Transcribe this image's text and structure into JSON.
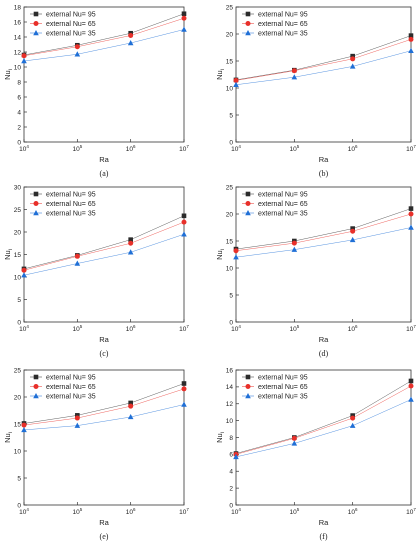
{
  "chart_data": [
    {
      "type": "line",
      "caption": "(a)",
      "xlabel": "Ra",
      "ylabel": "Nu",
      "ylabel_sub": "i",
      "xscale": "log",
      "x": [
        10000,
        100000,
        1000000,
        10000000
      ],
      "xticks": [
        {
          "base": "10",
          "exp": "4"
        },
        {
          "base": "10",
          "exp": "5"
        },
        {
          "base": "10",
          "exp": "6"
        },
        {
          "base": "10",
          "exp": "7"
        }
      ],
      "xlim": [
        10000,
        10000000
      ],
      "ylim": [
        0,
        18
      ],
      "yticks": [
        0,
        2,
        4,
        6,
        8,
        10,
        12,
        14,
        16,
        18
      ],
      "legend_position": "top-left",
      "series": [
        {
          "name": "external Nu= 95",
          "values": [
            11.6,
            12.9,
            14.5,
            17.1
          ]
        },
        {
          "name": "external Nu= 65",
          "values": [
            11.5,
            12.7,
            14.2,
            16.5
          ]
        },
        {
          "name": "external Nu= 35",
          "values": [
            10.8,
            11.7,
            13.2,
            15.0
          ]
        }
      ]
    },
    {
      "type": "line",
      "caption": "(b)",
      "xlabel": "Ra",
      "ylabel": "Nu",
      "ylabel_sub": "i",
      "xscale": "log",
      "x": [
        10000,
        100000,
        1000000,
        10000000
      ],
      "xticks": [
        {
          "base": "10",
          "exp": "4"
        },
        {
          "base": "10",
          "exp": "5"
        },
        {
          "base": "10",
          "exp": "6"
        },
        {
          "base": "10",
          "exp": "7"
        }
      ],
      "xlim": [
        10000,
        10000000
      ],
      "ylim": [
        0,
        25
      ],
      "yticks": [
        0,
        5,
        10,
        15,
        20,
        25
      ],
      "legend_position": "top-left",
      "series": [
        {
          "name": "external Nu= 95",
          "values": [
            11.5,
            13.3,
            15.9,
            19.7
          ]
        },
        {
          "name": "external Nu= 65",
          "values": [
            11.4,
            13.2,
            15.4,
            19.0
          ]
        },
        {
          "name": "external Nu= 35",
          "values": [
            10.6,
            12.0,
            14.0,
            16.9
          ]
        }
      ]
    },
    {
      "type": "line",
      "caption": "(c)",
      "xlabel": "Ra",
      "ylabel": "Nu",
      "ylabel_sub": "i",
      "xscale": "log",
      "x": [
        10000,
        100000,
        1000000,
        10000000
      ],
      "xticks": [
        {
          "base": "10",
          "exp": "4"
        },
        {
          "base": "10",
          "exp": "5"
        },
        {
          "base": "10",
          "exp": "6"
        },
        {
          "base": "10",
          "exp": "7"
        }
      ],
      "xlim": [
        10000,
        10000000
      ],
      "ylim": [
        0,
        30
      ],
      "yticks": [
        0,
        5,
        10,
        15,
        20,
        25,
        30
      ],
      "legend_position": "top-left",
      "series": [
        {
          "name": "external Nu= 95",
          "values": [
            11.8,
            14.8,
            18.3,
            23.6
          ]
        },
        {
          "name": "external Nu= 65",
          "values": [
            11.5,
            14.6,
            17.5,
            22.2
          ]
        },
        {
          "name": "external Nu= 35",
          "values": [
            10.4,
            13.0,
            15.5,
            19.5
          ]
        }
      ]
    },
    {
      "type": "line",
      "caption": "(d)",
      "xlabel": "Ra",
      "ylabel": "Nu",
      "ylabel_sub": "i",
      "xscale": "log",
      "x": [
        10000,
        100000,
        1000000,
        10000000
      ],
      "xticks": [
        {
          "base": "10",
          "exp": "4"
        },
        {
          "base": "10",
          "exp": "5"
        },
        {
          "base": "10",
          "exp": "6"
        },
        {
          "base": "10",
          "exp": "7"
        }
      ],
      "xlim": [
        10000,
        10000000
      ],
      "ylim": [
        0,
        25
      ],
      "yticks": [
        0,
        5,
        10,
        15,
        20,
        25
      ],
      "legend_position": "top-left",
      "series": [
        {
          "name": "external Nu= 95",
          "values": [
            13.5,
            15.0,
            17.3,
            21.0
          ]
        },
        {
          "name": "external Nu= 65",
          "values": [
            13.2,
            14.6,
            16.8,
            20.0
          ]
        },
        {
          "name": "external Nu= 35",
          "values": [
            12.0,
            13.4,
            15.2,
            17.5
          ]
        }
      ]
    },
    {
      "type": "line",
      "caption": "(e)",
      "xlabel": "Ra",
      "ylabel": "Nu",
      "ylabel_sub": "i",
      "xscale": "log",
      "x": [
        10000,
        100000,
        1000000,
        10000000
      ],
      "xticks": [
        {
          "base": "10",
          "exp": "4"
        },
        {
          "base": "10",
          "exp": "5"
        },
        {
          "base": "10",
          "exp": "6"
        },
        {
          "base": "10",
          "exp": "7"
        }
      ],
      "xlim": [
        10000,
        10000000
      ],
      "ylim": [
        0,
        25
      ],
      "yticks": [
        0,
        5,
        10,
        15,
        20,
        25
      ],
      "legend_position": "top-left",
      "series": [
        {
          "name": "external Nu= 95",
          "values": [
            15.1,
            16.6,
            18.9,
            22.5
          ]
        },
        {
          "name": "external Nu= 65",
          "values": [
            14.8,
            16.1,
            18.3,
            21.5
          ]
        },
        {
          "name": "external Nu= 35",
          "values": [
            13.9,
            14.7,
            16.3,
            18.6
          ]
        }
      ]
    },
    {
      "type": "line",
      "caption": "(f)",
      "xlabel": "Ra",
      "ylabel": "Nu",
      "ylabel_sub": "i",
      "xscale": "log",
      "x": [
        10000,
        100000,
        1000000,
        10000000
      ],
      "xticks": [
        {
          "base": "10",
          "exp": "4"
        },
        {
          "base": "10",
          "exp": "5"
        },
        {
          "base": "10",
          "exp": "6"
        },
        {
          "base": "10",
          "exp": "7"
        }
      ],
      "xlim": [
        10000,
        10000000
      ],
      "ylim": [
        0,
        16
      ],
      "yticks": [
        0,
        2,
        4,
        6,
        8,
        10,
        12,
        14,
        16
      ],
      "legend_position": "top-left",
      "series": [
        {
          "name": "external Nu= 95",
          "values": [
            6.1,
            8.0,
            10.6,
            14.7
          ]
        },
        {
          "name": "external Nu= 65",
          "values": [
            6.0,
            7.9,
            10.3,
            14.1
          ]
        },
        {
          "name": "external Nu= 35",
          "values": [
            5.7,
            7.3,
            9.4,
            12.5
          ]
        }
      ]
    }
  ],
  "series_styles": [
    {
      "marker": "square",
      "color": "#2b2b2b"
    },
    {
      "marker": "circle",
      "color": "#e8302a"
    },
    {
      "marker": "triangle",
      "color": "#1f6fd6"
    }
  ]
}
